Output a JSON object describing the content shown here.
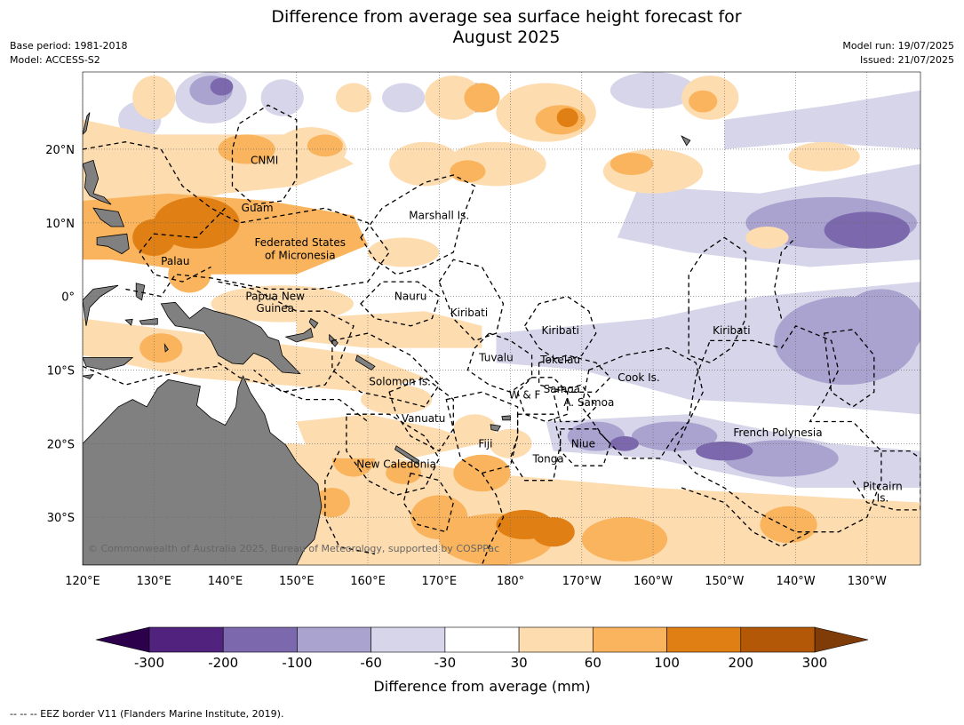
{
  "title_line1": "Difference from average sea surface height forecast for",
  "title_line2": "August 2025",
  "meta_left": {
    "base_period": "Base period: 1981-2018",
    "model": "Model: ACCESS-S2"
  },
  "meta_right": {
    "model_run": "Model run: 19/07/2025",
    "issued": "Issued: 21/07/2025"
  },
  "map": {
    "lon_min": 120,
    "lon_max": 237.5,
    "lat_min": -36.5,
    "lat_max": 30.5,
    "lon_ticks": [
      {
        "lon": 120,
        "label": "120°E"
      },
      {
        "lon": 130,
        "label": "130°E"
      },
      {
        "lon": 140,
        "label": "140°E"
      },
      {
        "lon": 150,
        "label": "150°E"
      },
      {
        "lon": 160,
        "label": "160°E"
      },
      {
        "lon": 170,
        "label": "170°E"
      },
      {
        "lon": 180,
        "label": "180°"
      },
      {
        "lon": 190,
        "label": "170°W"
      },
      {
        "lon": 200,
        "label": "160°W"
      },
      {
        "lon": 210,
        "label": "150°W"
      },
      {
        "lon": 220,
        "label": "140°W"
      },
      {
        "lon": 230,
        "label": "130°W"
      }
    ],
    "lat_ticks": [
      {
        "lat": 20,
        "label": "20°N"
      },
      {
        "lat": 10,
        "label": "10°N"
      },
      {
        "lat": 0,
        "label": "0°"
      },
      {
        "lat": -10,
        "label": "10°S"
      },
      {
        "lat": -20,
        "label": "20°S"
      },
      {
        "lat": -30,
        "label": "30°S"
      }
    ],
    "land_color": "#808080",
    "places": [
      {
        "name": "CNMI",
        "lon": 145.5,
        "lat": 18.5
      },
      {
        "name": "Guam",
        "lon": 144.5,
        "lat": 12.0
      },
      {
        "name": "Marshall Is.",
        "lon": 170.0,
        "lat": 11.0
      },
      {
        "name": "Federated States",
        "lon": 150.5,
        "lat": 7.3
      },
      {
        "name": "of Micronesia",
        "lon": 150.5,
        "lat": 5.6
      },
      {
        "name": "Palau",
        "lon": 133.0,
        "lat": 4.8
      },
      {
        "name": "Papua New",
        "lon": 147.0,
        "lat": 0.0
      },
      {
        "name": "Guinea",
        "lon": 147.0,
        "lat": -1.6
      },
      {
        "name": "Nauru",
        "lon": 166.0,
        "lat": 0.0
      },
      {
        "name": "Kiribati",
        "lon": 174.2,
        "lat": -2.2
      },
      {
        "name": "Kiribati",
        "lon": 187.0,
        "lat": -4.6
      },
      {
        "name": "Kiribati",
        "lon": 211.0,
        "lat": -4.6
      },
      {
        "name": "Tuvalu",
        "lon": 178.0,
        "lat": -8.3
      },
      {
        "name": "Tokelau",
        "lon": 187.0,
        "lat": -8.6
      },
      {
        "name": "Solomon Is.",
        "lon": 164.5,
        "lat": -11.6
      },
      {
        "name": "Cook Is.",
        "lon": 198.0,
        "lat": -11.0
      },
      {
        "name": "Samoa",
        "lon": 187.2,
        "lat": -12.6
      },
      {
        "name": "W & F",
        "lon": 182.0,
        "lat": -13.4
      },
      {
        "name": "A. Samoa",
        "lon": 191.0,
        "lat": -14.4
      },
      {
        "name": "Vanuatu",
        "lon": 167.8,
        "lat": -16.6
      },
      {
        "name": "French Polynesia",
        "lon": 217.5,
        "lat": -18.5
      },
      {
        "name": "Fiji",
        "lon": 176.5,
        "lat": -20.0
      },
      {
        "name": "Niue",
        "lon": 190.2,
        "lat": -20.0
      },
      {
        "name": "Tonga",
        "lon": 185.3,
        "lat": -22.1
      },
      {
        "name": "New Caledonia",
        "lon": 164.0,
        "lat": -22.8
      },
      {
        "name": "Pitcairn",
        "lon": 232.2,
        "lat": -25.8
      },
      {
        "name": "Is.",
        "lon": 232.2,
        "lat": -27.4
      }
    ],
    "copyright": "© Commonwealth of Australia 2025, Bureau of Meteorology, supported by COSPPac"
  },
  "colorbar": {
    "ticks": [
      "-300",
      "-200",
      "-100",
      "-60",
      "-30",
      "30",
      "60",
      "100",
      "200",
      "300"
    ],
    "colors": [
      "#52227f",
      "#7b68ad",
      "#aaa2cf",
      "#d6d5e9",
      "#ffffff",
      "#fddcb0",
      "#f9b45d",
      "#e07f13",
      "#b35806"
    ],
    "under_color": "#2d004b",
    "over_color": "#7f3b08",
    "label": "Difference from average (mm)"
  },
  "footer": "-- -- -- EEZ border V11 (Flanders Marine Institute, 2019)."
}
